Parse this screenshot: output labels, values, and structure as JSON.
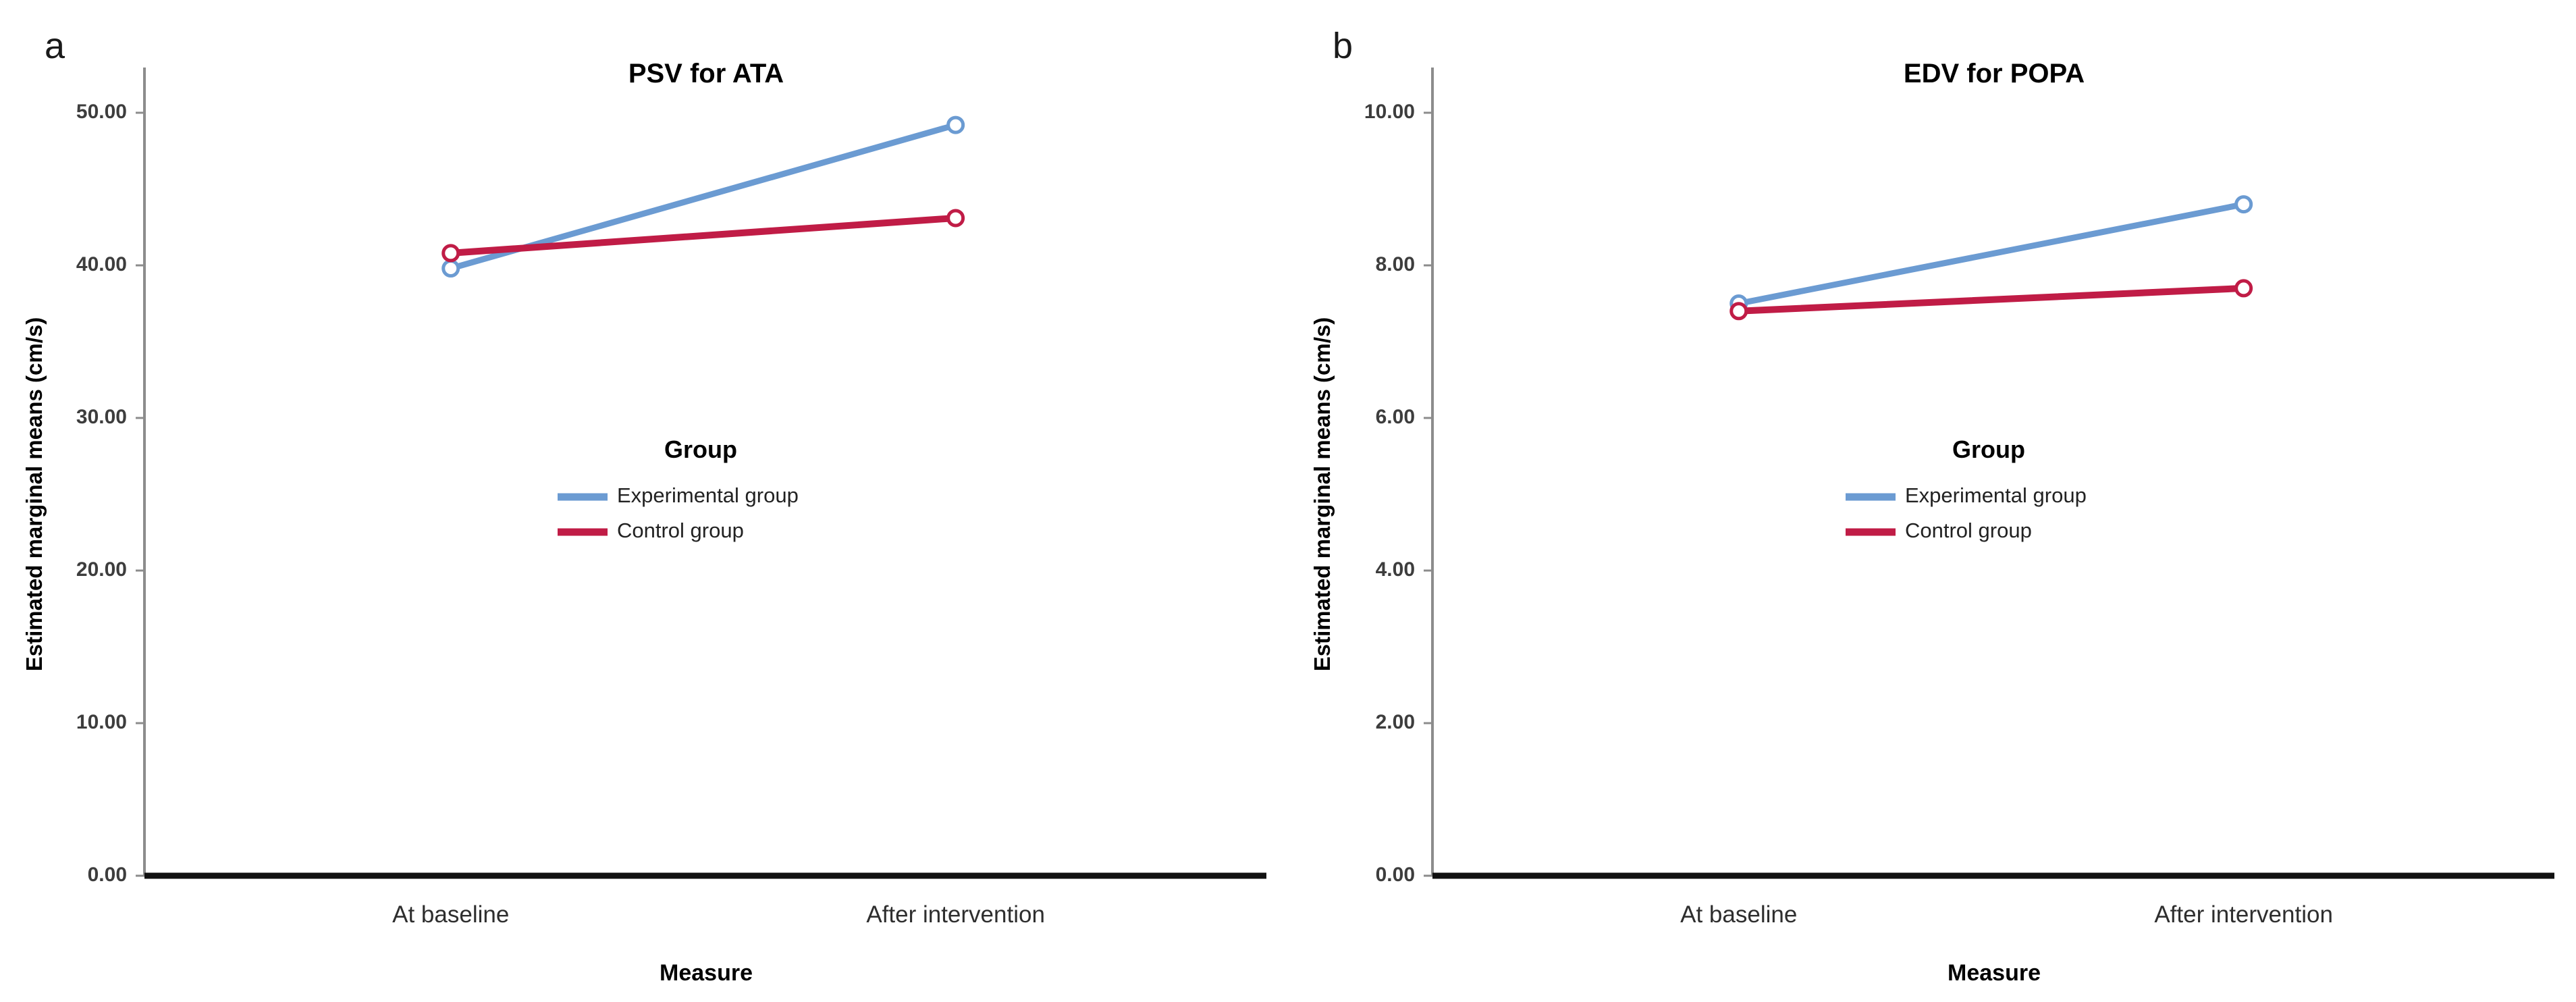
{
  "figure_type": "dual-panel line chart (estimated marginal means profile plots)",
  "chart_data": [
    {
      "type": "line",
      "panel_label": "a",
      "title": "PSV for ATA",
      "xlabel": "Measure",
      "ylabel": "Estimated marginal means (cm/s)",
      "categories": [
        "At baseline",
        "After intervention"
      ],
      "series": [
        {
          "name": "Experimental group",
          "color": "#6B9BD2",
          "values": [
            39.8,
            49.2
          ]
        },
        {
          "name": "Control group",
          "color": "#C01C46",
          "values": [
            40.8,
            43.1
          ]
        }
      ],
      "ylim": [
        0,
        50
      ],
      "yticks": [
        0,
        10,
        20,
        30,
        40,
        50
      ],
      "ytick_decimals": 2,
      "legend_title": "Group",
      "legend_position": "inside-center",
      "grid": false,
      "marker": "open-circle"
    },
    {
      "type": "line",
      "panel_label": "b",
      "title": "EDV for POPA",
      "xlabel": "Measure",
      "ylabel": "Estimated marginal means (cm/s)",
      "categories": [
        "At baseline",
        "After intervention"
      ],
      "series": [
        {
          "name": "Experimental group",
          "color": "#6B9BD2",
          "values": [
            7.5,
            8.8
          ]
        },
        {
          "name": "Control group",
          "color": "#C01C46",
          "values": [
            7.4,
            7.7
          ]
        }
      ],
      "ylim": [
        0,
        10
      ],
      "yticks": [
        0,
        2,
        4,
        6,
        8,
        10
      ],
      "ytick_decimals": 2,
      "legend_title": "Group",
      "legend_position": "inside-center",
      "grid": false,
      "marker": "open-circle"
    }
  ],
  "colors": {
    "experimental": "#6B9BD2",
    "control": "#C01C46",
    "y_axis_line": "#8c8c8c",
    "x_axis_line": "#111111",
    "tick_text": "#3d3d3d",
    "category_text": "#2e2e2e",
    "title_text": "#000000",
    "background": "#ffffff"
  }
}
